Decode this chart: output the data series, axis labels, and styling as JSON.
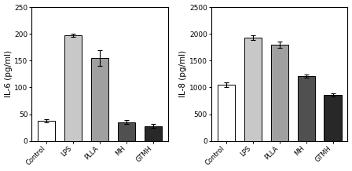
{
  "left_chart": {
    "ylabel": "IL-6 (pg/ml)",
    "ylim": [
      0,
      250
    ],
    "yticks": [
      0,
      50,
      100,
      150,
      200,
      250
    ],
    "categories": [
      "Control",
      "LPS",
      "PLLA",
      "MH",
      "GTMH"
    ],
    "values": [
      37,
      197,
      155,
      35,
      28
    ],
    "errors": [
      3,
      3,
      15,
      4,
      3
    ],
    "colors": [
      "#ffffff",
      "#c8c8c8",
      "#a0a0a0",
      "#505050",
      "#282828"
    ],
    "edgecolor": "#000000"
  },
  "right_chart": {
    "ylabel": "IL-8 (pg/ml)",
    "ylim": [
      0,
      2500
    ],
    "yticks": [
      0,
      500,
      1000,
      1500,
      2000,
      2500
    ],
    "categories": [
      "Control",
      "LPS",
      "PLLA",
      "MH",
      "GTMH"
    ],
    "values": [
      1050,
      1930,
      1800,
      1210,
      860
    ],
    "errors": [
      40,
      50,
      60,
      35,
      25
    ],
    "colors": [
      "#ffffff",
      "#c8c8c8",
      "#a0a0a0",
      "#505050",
      "#282828"
    ],
    "edgecolor": "#000000"
  },
  "background_color": "#ffffff",
  "bar_width": 0.65,
  "capsize": 2.5,
  "tick_label_fontsize": 6,
  "axis_label_fontsize": 7.5,
  "ytick_fontsize": 6.5
}
